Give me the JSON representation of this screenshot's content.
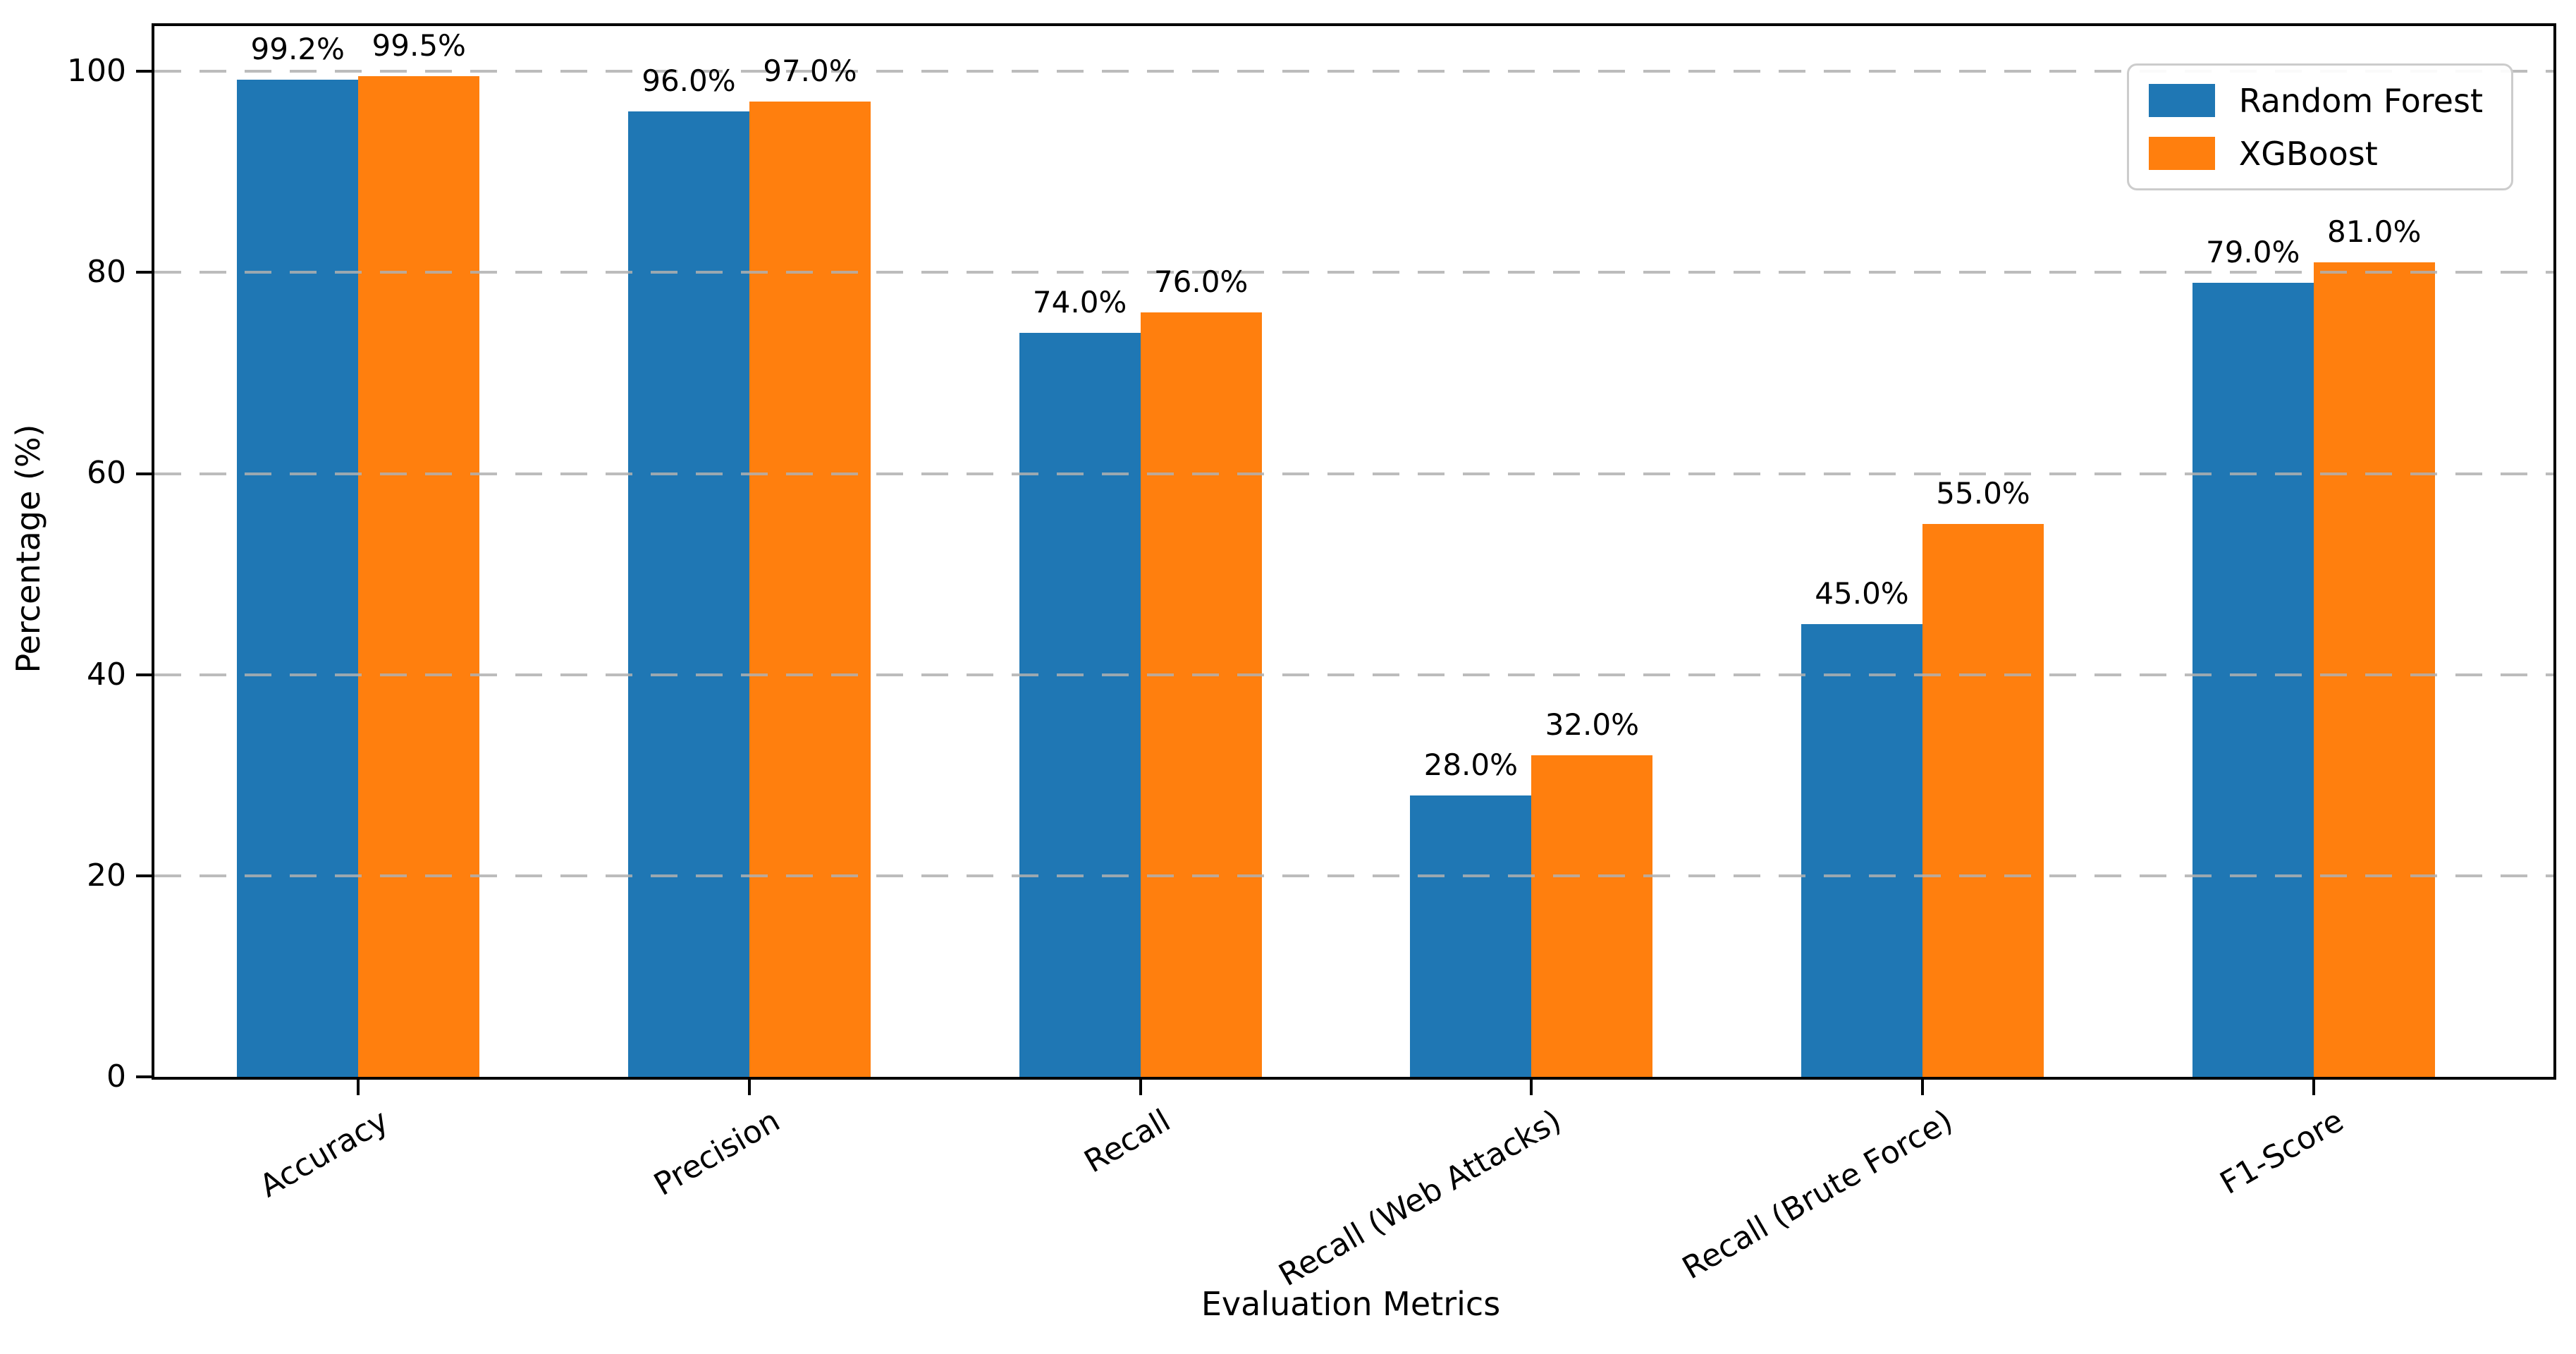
{
  "chart_data": {
    "type": "bar",
    "title": "",
    "xlabel": "Evaluation Metrics",
    "ylabel": "Percentage (%)",
    "categories": [
      "Accuracy",
      "Precision",
      "Recall",
      "Recall (Web Attacks)",
      "Recall (Brute Force)",
      "F1-Score"
    ],
    "series": [
      {
        "name": "Random Forest",
        "color": "#1f77b4",
        "values": [
          99.2,
          96.0,
          74.0,
          28.0,
          45.0,
          79.0
        ],
        "labels": [
          "99.2%",
          "96.0%",
          "74.0%",
          "28.0%",
          "45.0%",
          "79.0%"
        ]
      },
      {
        "name": "XGBoost",
        "color": "#ff7f0e",
        "values": [
          99.5,
          97.0,
          76.0,
          32.0,
          55.0,
          81.0
        ],
        "labels": [
          "99.5%",
          "97.0%",
          "76.0%",
          "32.0%",
          "55.0%",
          "81.0%"
        ]
      }
    ],
    "yticks": [
      0,
      20,
      40,
      60,
      80,
      100
    ],
    "ylim": [
      0,
      104.5
    ],
    "grid": "horizontal-dashed",
    "grid_color": "#b0b0b0",
    "legend_position": "upper-right",
    "spine_color": "#000000"
  }
}
